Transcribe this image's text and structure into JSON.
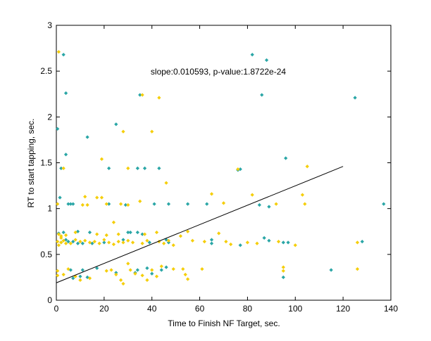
{
  "chart_data": {
    "type": "scatter",
    "xlabel": "Time to Finish NF Target, sec.",
    "ylabel": "RT to start tapping, sec.",
    "annotation": "slope:0.010593, p-value:1.8722e-24",
    "xlim": [
      0,
      140
    ],
    "ylim": [
      0,
      3
    ],
    "xticks": [
      0,
      20,
      40,
      60,
      80,
      100,
      120,
      140
    ],
    "yticks": [
      0,
      0.5,
      1,
      1.5,
      2,
      2.5,
      3
    ],
    "grid": false,
    "fit_line": {
      "x": [
        0,
        120
      ],
      "y": [
        0.19,
        1.46
      ],
      "color": "#000000"
    },
    "series": [
      {
        "color": "#2AA6A6",
        "points": [
          [
            0.5,
            1.87
          ],
          [
            3,
            2.68
          ],
          [
            4,
            2.26
          ],
          [
            4,
            1.59
          ],
          [
            2,
            1.44
          ],
          [
            1.5,
            1.12
          ],
          [
            13,
            1.78
          ],
          [
            25,
            1.92
          ],
          [
            22,
            1.44
          ],
          [
            34,
            1.44
          ],
          [
            37,
            1.44
          ],
          [
            35,
            2.24
          ],
          [
            82,
            2.68
          ],
          [
            88,
            2.62
          ],
          [
            86,
            2.24
          ],
          [
            96,
            1.55
          ],
          [
            125,
            2.21
          ],
          [
            137,
            1.05
          ],
          [
            76,
            1.42
          ],
          [
            77,
            1.43
          ],
          [
            43,
            1.44
          ],
          [
            47,
            1.05
          ],
          [
            55,
            1.05
          ],
          [
            63,
            1.05
          ],
          [
            85,
            1.04
          ],
          [
            89,
            1.02
          ],
          [
            41,
            1.05
          ],
          [
            29,
            1.04
          ],
          [
            22,
            1.05
          ],
          [
            7,
            1.05
          ],
          [
            6,
            1.05
          ],
          [
            5,
            1.05
          ],
          [
            30,
            0.74
          ],
          [
            31,
            0.74
          ],
          [
            34,
            0.74
          ],
          [
            36,
            0.72
          ],
          [
            46,
            0.66
          ],
          [
            65,
            0.66
          ],
          [
            2,
            0.63
          ],
          [
            4,
            0.66
          ],
          [
            5,
            0.64
          ],
          [
            7,
            0.64
          ],
          [
            9,
            0.62
          ],
          [
            11,
            0.62
          ],
          [
            14,
            0.74
          ],
          [
            9,
            0.75
          ],
          [
            15,
            0.62
          ],
          [
            20,
            0.63
          ],
          [
            28,
            0.66
          ],
          [
            39,
            0.63
          ],
          [
            47,
            0.63
          ],
          [
            65,
            0.62
          ],
          [
            77,
            0.6
          ],
          [
            87,
            0.68
          ],
          [
            89,
            0.65
          ],
          [
            95,
            0.63
          ],
          [
            97,
            0.63
          ],
          [
            128,
            0.64
          ],
          [
            6,
            0.33
          ],
          [
            7,
            0.24
          ],
          [
            10,
            0.26
          ],
          [
            11,
            0.33
          ],
          [
            13,
            0.25
          ],
          [
            17,
            0.35
          ],
          [
            25,
            0.3
          ],
          [
            34,
            0.33
          ],
          [
            38,
            0.35
          ],
          [
            40,
            0.29
          ],
          [
            44,
            0.33
          ],
          [
            46,
            0.36
          ],
          [
            95,
            0.25
          ],
          [
            115,
            0.33
          ],
          [
            3,
            0.74
          ],
          [
            1,
            0.73
          ],
          [
            33,
            0.3
          ]
        ]
      },
      {
        "color": "#F5CE0A",
        "points": [
          [
            1,
            2.71
          ],
          [
            3,
            1.44
          ],
          [
            28,
            1.84
          ],
          [
            40,
            1.84
          ],
          [
            36,
            2.24
          ],
          [
            43,
            2.21
          ],
          [
            19,
            1.54
          ],
          [
            30,
            1.44
          ],
          [
            46,
            1.28
          ],
          [
            76,
            1.43
          ],
          [
            105,
            1.46
          ],
          [
            103,
            1.15
          ],
          [
            65,
            1.16
          ],
          [
            70,
            1.06
          ],
          [
            82,
            1.15
          ],
          [
            92,
            1.05
          ],
          [
            104,
            1.05
          ],
          [
            12,
            1.13
          ],
          [
            13,
            1.04
          ],
          [
            17,
            1.12
          ],
          [
            19,
            1.12
          ],
          [
            21,
            1.05
          ],
          [
            27,
            1.05
          ],
          [
            30,
            1.04
          ],
          [
            35,
            1.08
          ],
          [
            11,
            1.04
          ],
          [
            0.5,
            1.05
          ],
          [
            24,
            0.85
          ],
          [
            1,
            0.72
          ],
          [
            2,
            0.68
          ],
          [
            3,
            0.65
          ],
          [
            0.5,
            0.64
          ],
          [
            1,
            0.6
          ],
          [
            2,
            0.63
          ],
          [
            4,
            0.62
          ],
          [
            6,
            0.62
          ],
          [
            8,
            0.66
          ],
          [
            10,
            0.64
          ],
          [
            12,
            0.65
          ],
          [
            14,
            0.63
          ],
          [
            16,
            0.64
          ],
          [
            18,
            0.62
          ],
          [
            20,
            0.66
          ],
          [
            22,
            0.63
          ],
          [
            24,
            0.61
          ],
          [
            26,
            0.64
          ],
          [
            28,
            0.63
          ],
          [
            30,
            0.65
          ],
          [
            32,
            0.63
          ],
          [
            36,
            0.62
          ],
          [
            38,
            0.65
          ],
          [
            43,
            0.64
          ],
          [
            45,
            0.62
          ],
          [
            47,
            0.65
          ],
          [
            49,
            0.6
          ],
          [
            52,
            0.7
          ],
          [
            57,
            0.65
          ],
          [
            62,
            0.64
          ],
          [
            68,
            0.73
          ],
          [
            71,
            0.64
          ],
          [
            73,
            0.61
          ],
          [
            80,
            0.63
          ],
          [
            84,
            0.62
          ],
          [
            93,
            0.64
          ],
          [
            8,
            0.74
          ],
          [
            17,
            0.72
          ],
          [
            21,
            0.71
          ],
          [
            26,
            0.72
          ],
          [
            37,
            0.72
          ],
          [
            42,
            0.74
          ],
          [
            55,
            0.75
          ],
          [
            0.5,
            0.27
          ],
          [
            3,
            0.28
          ],
          [
            5,
            0.34
          ],
          [
            8,
            0.26
          ],
          [
            10,
            0.22
          ],
          [
            14,
            0.24
          ],
          [
            21,
            0.32
          ],
          [
            23,
            0.33
          ],
          [
            25,
            0.28
          ],
          [
            27,
            0.22
          ],
          [
            28,
            0.18
          ],
          [
            30,
            0.4
          ],
          [
            31,
            0.33
          ],
          [
            33,
            0.29
          ],
          [
            36,
            0.27
          ],
          [
            38,
            0.22
          ],
          [
            40,
            0.33
          ],
          [
            42,
            0.26
          ],
          [
            44,
            0.37
          ],
          [
            49,
            0.34
          ],
          [
            53,
            0.34
          ],
          [
            54,
            0.28
          ],
          [
            55,
            0.23
          ],
          [
            61,
            0.34
          ],
          [
            95,
            0.36
          ],
          [
            95,
            0.32
          ],
          [
            100,
            0.6
          ],
          [
            126,
            0.63
          ],
          [
            126,
            0.34
          ],
          [
            2,
            0.7
          ],
          [
            4,
            0.71
          ],
          [
            0.5,
            0.32
          ]
        ]
      }
    ]
  }
}
